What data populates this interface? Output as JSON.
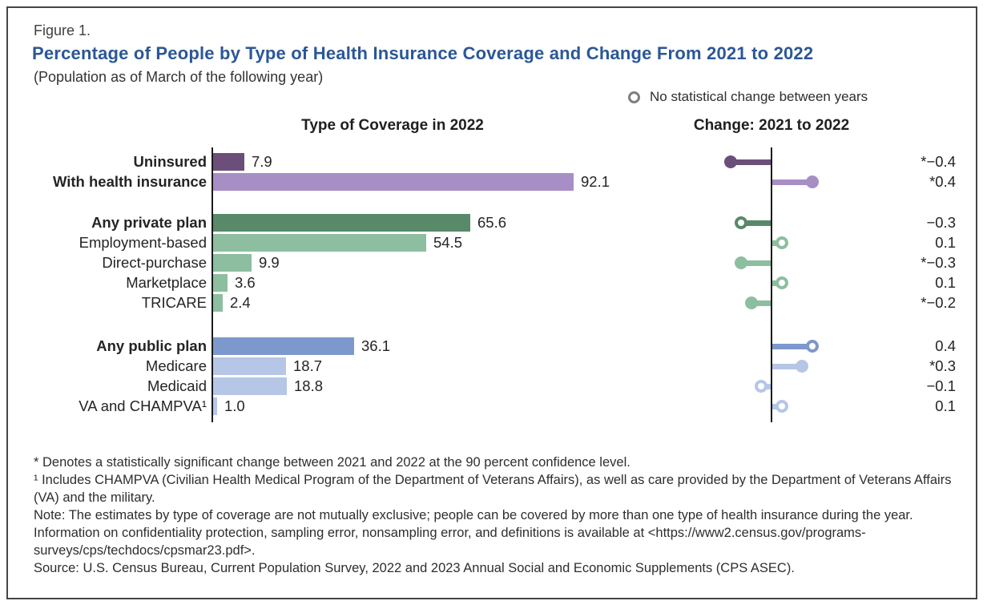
{
  "header": {
    "figure_label": "Figure 1.",
    "title": "Percentage of People by Type of Health Insurance Coverage and Change From 2021 to 2022",
    "subtitle": "(Population as of March of the following year)"
  },
  "legend": {
    "no_change_label": "No statistical change between years",
    "marker": "open-circle"
  },
  "chart_data": {
    "type": "bar",
    "subtype": "paired horizontal bar + lollipop change chart",
    "left_panel_title": "Type of Coverage in 2022",
    "right_panel_title": "Change: 2021 to 2022",
    "categories": [
      "Uninsured",
      "With health insurance",
      "Any private plan",
      "Employment-based",
      "Direct-purchase",
      "Marketplace",
      "TRICARE",
      "Any public plan",
      "Medicare",
      "Medicaid",
      "VA and CHAMPVA¹"
    ],
    "series": [
      {
        "name": "Percent covered in 2022",
        "values": [
          7.9,
          92.1,
          65.6,
          54.5,
          9.9,
          3.6,
          2.4,
          36.1,
          18.7,
          18.8,
          1.0
        ]
      },
      {
        "name": "Change 2021 to 2022 (percentage points)",
        "values": [
          -0.4,
          0.4,
          -0.3,
          0.1,
          -0.3,
          0.1,
          -0.2,
          0.4,
          0.3,
          -0.1,
          0.1
        ]
      }
    ],
    "left_xlim": [
      0,
      95
    ],
    "right_xlim": [
      -0.55,
      0.55
    ],
    "grid": false,
    "rows": [
      {
        "label": "Uninsured",
        "bold": true,
        "group": "purple_dark",
        "value": "7.9",
        "change": -0.4,
        "change_label": "*−0.4",
        "significant": true,
        "marker": "filled",
        "section": 0
      },
      {
        "label": "With health insurance",
        "bold": true,
        "group": "purple_light",
        "value": "92.1",
        "change": 0.4,
        "change_label": "*0.4",
        "significant": true,
        "marker": "filled",
        "section": 0
      },
      {
        "label": "Any private plan",
        "bold": true,
        "group": "green_dark",
        "value": "65.6",
        "change": -0.3,
        "change_label": "−0.3",
        "significant": false,
        "marker": "open",
        "section": 1
      },
      {
        "label": "Employment-based",
        "bold": false,
        "group": "green_light",
        "value": "54.5",
        "change": 0.1,
        "change_label": "0.1",
        "significant": false,
        "marker": "open",
        "section": 1
      },
      {
        "label": "Direct-purchase",
        "bold": false,
        "group": "green_light",
        "value": "9.9",
        "change": -0.3,
        "change_label": "*−0.3",
        "significant": true,
        "marker": "filled",
        "section": 1
      },
      {
        "label": "Marketplace",
        "bold": false,
        "group": "green_light",
        "value": "3.6",
        "change": 0.1,
        "change_label": "0.1",
        "significant": false,
        "marker": "open",
        "section": 1
      },
      {
        "label": "TRICARE",
        "bold": false,
        "group": "green_light",
        "value": "2.4",
        "change": -0.2,
        "change_label": "*−0.2",
        "significant": true,
        "marker": "filled",
        "section": 1
      },
      {
        "label": "Any public plan",
        "bold": true,
        "group": "blue_medium",
        "value": "36.1",
        "change": 0.4,
        "change_label": "0.4",
        "significant": false,
        "marker": "open",
        "section": 2
      },
      {
        "label": "Medicare",
        "bold": false,
        "group": "blue_light",
        "value": "18.7",
        "change": 0.3,
        "change_label": "*0.3",
        "significant": true,
        "marker": "filled",
        "section": 2
      },
      {
        "label": "Medicaid",
        "bold": false,
        "group": "blue_light",
        "value": "18.8",
        "change": -0.1,
        "change_label": "−0.1",
        "significant": false,
        "marker": "open",
        "section": 2
      },
      {
        "label": "VA and CHAMPVA¹",
        "bold": false,
        "group": "blue_light",
        "value": "1.0",
        "change": 0.1,
        "change_label": "0.1",
        "significant": false,
        "marker": "open",
        "section": 2
      }
    ],
    "colors": {
      "purple_dark": "#6b4f7a",
      "purple_light": "#a78ec5",
      "green_dark": "#588969",
      "green_light": "#8dbea0",
      "blue_medium": "#7d98cc",
      "blue_light": "#b6c6e6",
      "title_blue": "#2b5797",
      "axis": "#1a1a1a",
      "legend_ring": "#7f7f7f"
    }
  },
  "footnotes": {
    "significance": "* Denotes a statistically significant change between 2021 and 2022 at the 90 percent confidence level.",
    "champva": "¹ Includes CHAMPVA (Civilian Health Medical Program of the Department of Veterans Affairs), as well as care provided by the Department of Veterans Affairs (VA) and the military.",
    "note": "Note: The estimates by type of coverage are not mutually exclusive; people can be covered by more than one type of health insurance during the year. Information on confidentiality protection, sampling error, nonsampling error, and definitions is available at <https://www2.census.gov/programs-surveys/cps/techdocs/cpsmar23.pdf>.",
    "source": "Source: U.S. Census Bureau, Current Population Survey, 2022 and 2023 Annual Social and Economic Supplements (CPS ASEC)."
  }
}
